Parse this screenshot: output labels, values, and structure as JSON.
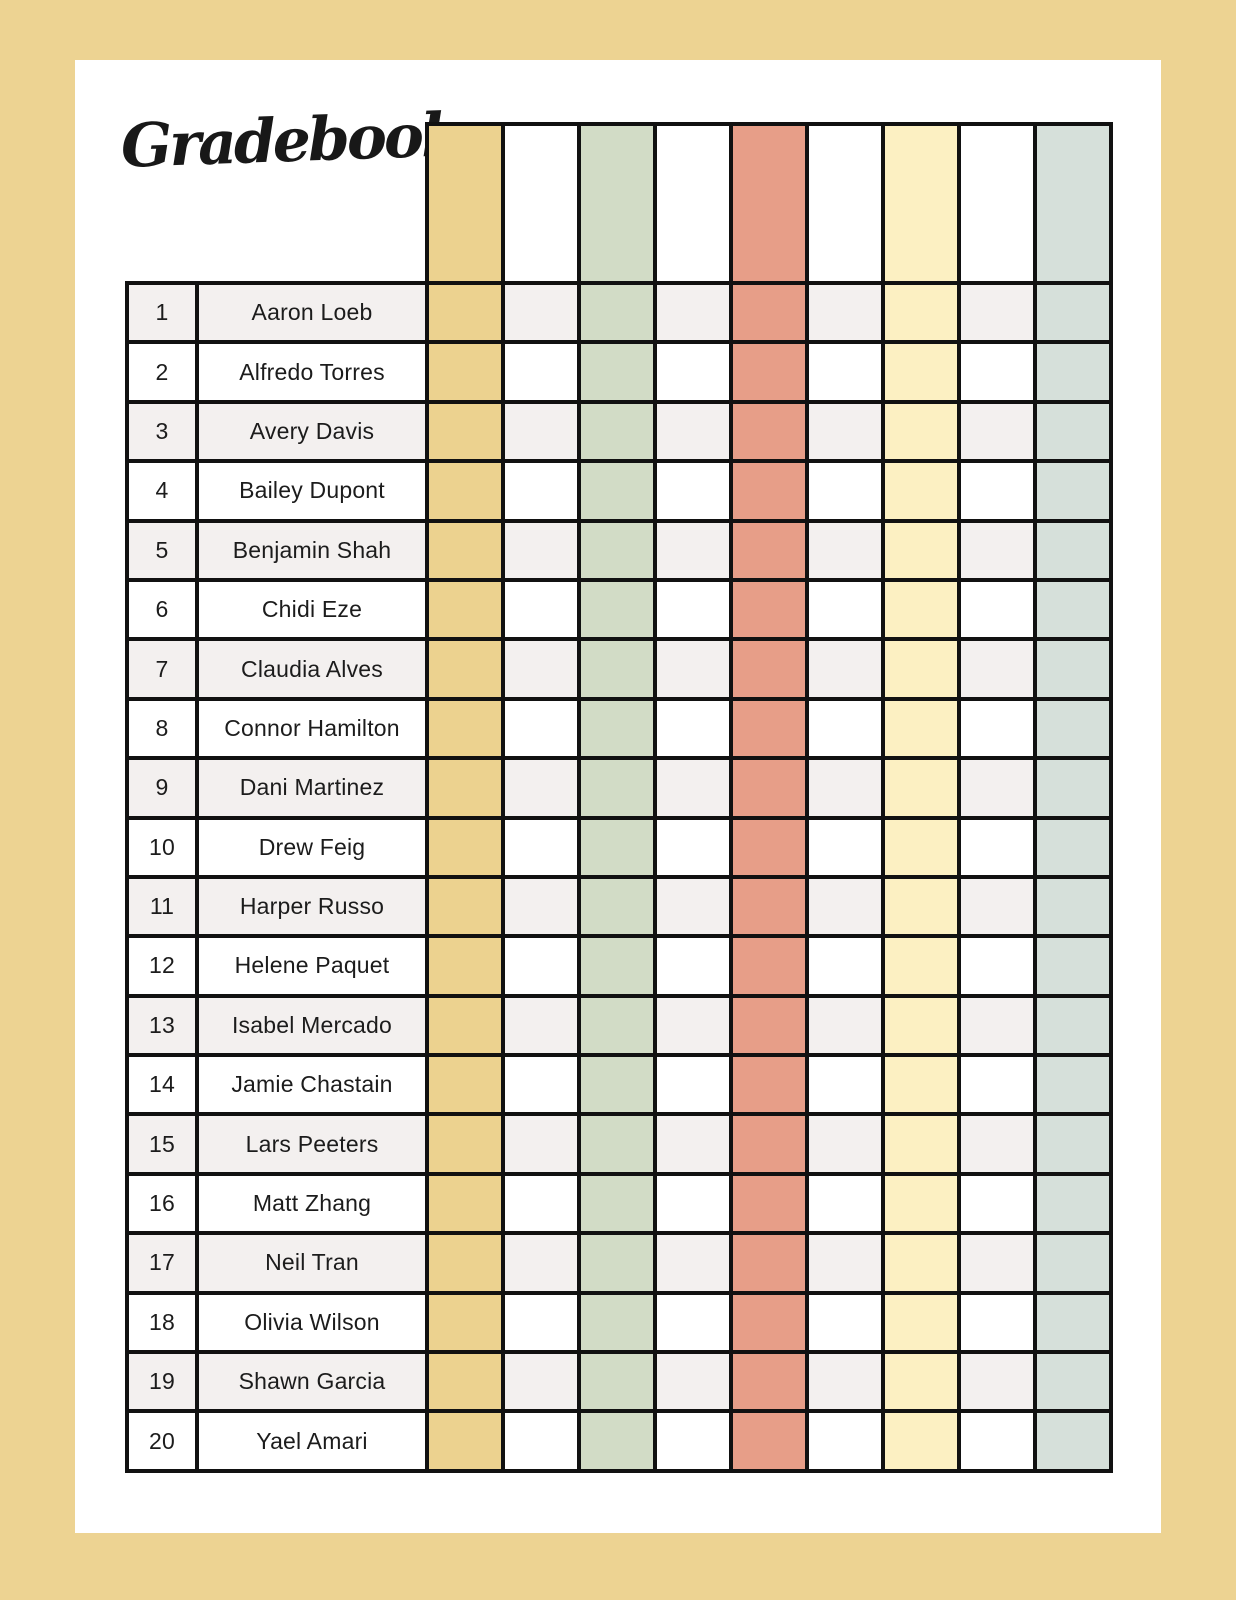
{
  "page": {
    "title": "Gradebook"
  },
  "colors": {
    "frame": "#edd392",
    "paper": "#ffffff",
    "grid_line": "#111111",
    "row_shade": "#f3f0ef",
    "row_plain": "#ffffff",
    "text": "#1c1c1c"
  },
  "grade_columns": [
    {
      "id": "col-1",
      "color_name": "gold",
      "color": "#ecd28f"
    },
    {
      "id": "col-2",
      "color_name": "white",
      "color": "#ffffff"
    },
    {
      "id": "col-3",
      "color_name": "sage",
      "color": "#d2dcc6"
    },
    {
      "id": "col-4",
      "color_name": "white",
      "color": "#ffffff"
    },
    {
      "id": "col-5",
      "color_name": "salmon",
      "color": "#e79e88"
    },
    {
      "id": "col-6",
      "color_name": "white",
      "color": "#ffffff"
    },
    {
      "id": "col-7",
      "color_name": "pale-yellow",
      "color": "#fcf0c2"
    },
    {
      "id": "col-8",
      "color_name": "white",
      "color": "#ffffff"
    },
    {
      "id": "col-9",
      "color_name": "mint",
      "color": "#d6e0da"
    }
  ],
  "students": [
    {
      "num": "1",
      "name": "Aaron Loeb"
    },
    {
      "num": "2",
      "name": "Alfredo Torres"
    },
    {
      "num": "3",
      "name": "Avery Davis"
    },
    {
      "num": "4",
      "name": "Bailey Dupont"
    },
    {
      "num": "5",
      "name": "Benjamin Shah"
    },
    {
      "num": "6",
      "name": "Chidi Eze"
    },
    {
      "num": "7",
      "name": "Claudia Alves"
    },
    {
      "num": "8",
      "name": "Connor Hamilton"
    },
    {
      "num": "9",
      "name": "Dani Martinez"
    },
    {
      "num": "10",
      "name": "Drew Feig"
    },
    {
      "num": "11",
      "name": "Harper Russo"
    },
    {
      "num": "12",
      "name": "Helene Paquet"
    },
    {
      "num": "13",
      "name": "Isabel Mercado"
    },
    {
      "num": "14",
      "name": "Jamie Chastain"
    },
    {
      "num": "15",
      "name": "Lars Peeters"
    },
    {
      "num": "16",
      "name": "Matt Zhang"
    },
    {
      "num": "17",
      "name": "Neil Tran"
    },
    {
      "num": "18",
      "name": "Olivia Wilson"
    },
    {
      "num": "19",
      "name": "Shawn Garcia"
    },
    {
      "num": "20",
      "name": "Yael Amari"
    }
  ]
}
